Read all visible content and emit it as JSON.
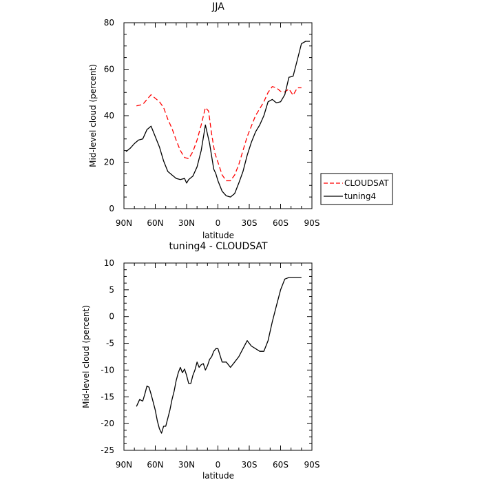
{
  "chart_data": [
    {
      "type": "line",
      "title": "JJA",
      "xlabel": "latitude",
      "ylabel": "Mid-level cloud (percent)",
      "xlim": [
        90,
        -90
      ],
      "ylim": [
        0,
        80
      ],
      "x_ticks": [
        90,
        60,
        30,
        0,
        -30,
        -60,
        -90
      ],
      "x_tick_labels": [
        "90N",
        "60N",
        "30N",
        "0",
        "30S",
        "60S",
        "90S"
      ],
      "y_ticks": [
        0,
        20,
        40,
        60,
        80
      ],
      "y_tick_labels": [
        "0",
        "20",
        "40",
        "60",
        "80"
      ],
      "legend_position": "right",
      "series": [
        {
          "name": "CLOUDSAT",
          "color": "#ff0000",
          "style": "dashed",
          "x": [
            78,
            72,
            68,
            64,
            60,
            56,
            52,
            48,
            44,
            40,
            36,
            32,
            28,
            24,
            20,
            16,
            12,
            9,
            6,
            3,
            0,
            -4,
            -8,
            -12,
            -16,
            -20,
            -24,
            -28,
            -32,
            -36,
            -40,
            -44,
            -48,
            -52,
            -56,
            -60,
            -64,
            -68,
            -72,
            -76,
            -80
          ],
          "y": [
            44.2,
            44.8,
            47.0,
            49.0,
            47.5,
            46.0,
            43.5,
            38.5,
            34.5,
            29.5,
            25.0,
            22.0,
            21.5,
            24.5,
            29.5,
            36.0,
            43.5,
            42.0,
            32.0,
            24.0,
            20.0,
            14.5,
            12.0,
            12.0,
            14.5,
            19.0,
            25.0,
            31.0,
            35.5,
            40.0,
            43.0,
            46.0,
            50.0,
            52.5,
            52.0,
            50.5,
            50.2,
            51.5,
            48.8,
            52.0,
            52.0
          ]
        },
        {
          "name": "tuning4",
          "color": "#000000",
          "style": "solid",
          "x": [
            88,
            84,
            80,
            76,
            72,
            68,
            64,
            60,
            56,
            52,
            48,
            44,
            40,
            36,
            32,
            30,
            28,
            24,
            20,
            16,
            12,
            8,
            4,
            2,
            0,
            -4,
            -8,
            -12,
            -16,
            -20,
            -24,
            -28,
            -32,
            -36,
            -40,
            -44,
            -48,
            -52,
            -56,
            -60,
            -64,
            -68,
            -72,
            -76,
            -80,
            -84,
            -88
          ],
          "y": [
            24.5,
            26.0,
            28.0,
            29.5,
            30.0,
            34.0,
            35.5,
            31.0,
            26.5,
            20.5,
            16.0,
            14.5,
            13.0,
            12.5,
            13.0,
            11.0,
            12.5,
            14.0,
            18.0,
            25.0,
            36.0,
            28.0,
            17.0,
            15.0,
            12.0,
            7.5,
            5.5,
            5.0,
            6.5,
            11.0,
            16.0,
            23.0,
            28.5,
            33.0,
            36.0,
            40.0,
            46.0,
            47.0,
            45.5,
            46.0,
            49.0,
            56.5,
            57.0,
            64.0,
            71.0,
            72.0,
            72.0
          ]
        }
      ]
    },
    {
      "type": "line",
      "title": "tuning4 - CLOUDSAT",
      "xlabel": "latitude",
      "ylabel": "Mid-level cloud (percent)",
      "xlim": [
        90,
        -90
      ],
      "ylim": [
        -25,
        10
      ],
      "x_ticks": [
        90,
        60,
        30,
        0,
        -30,
        -60,
        -90
      ],
      "x_tick_labels": [
        "90N",
        "60N",
        "30N",
        "0",
        "30S",
        "60S",
        "90S"
      ],
      "y_ticks": [
        -25,
        -20,
        -15,
        -10,
        -5,
        0,
        5,
        10
      ],
      "y_tick_labels": [
        "-25",
        "-20",
        "-15",
        "-10",
        "-5",
        "0",
        "5",
        "10"
      ],
      "series": [
        {
          "color": "#000000",
          "style": "solid",
          "x": [
            78,
            75,
            72,
            70,
            68,
            66,
            64,
            62,
            60,
            58,
            56,
            54,
            52,
            50,
            48,
            46,
            44,
            42,
            40,
            38,
            36,
            34,
            32,
            30,
            28,
            26,
            24,
            22,
            20,
            18,
            16,
            14,
            12,
            10,
            8,
            6,
            4,
            2,
            0,
            -4,
            -8,
            -12,
            -16,
            -20,
            -24,
            -28,
            -32,
            -36,
            -40,
            -44,
            -48,
            -52,
            -56,
            -60,
            -64,
            -68,
            -70,
            -72,
            -74,
            -76,
            -78,
            -80
          ],
          "y": [
            -16.8,
            -15.5,
            -15.8,
            -14.5,
            -13.0,
            -13.2,
            -14.5,
            -16.0,
            -17.5,
            -19.5,
            -21.0,
            -21.8,
            -20.5,
            -20.5,
            -19.0,
            -17.5,
            -15.5,
            -14.0,
            -12.0,
            -10.5,
            -9.5,
            -10.5,
            -9.8,
            -11.0,
            -12.5,
            -12.5,
            -11.0,
            -10.0,
            -8.5,
            -9.5,
            -9.0,
            -8.8,
            -10.0,
            -9.2,
            -8.0,
            -7.5,
            -6.5,
            -6.0,
            -6.0,
            -8.5,
            -8.5,
            -9.5,
            -8.5,
            -7.5,
            -6.0,
            -4.5,
            -5.5,
            -6.0,
            -6.5,
            -6.5,
            -4.5,
            -1.0,
            2.0,
            5.0,
            7.0,
            7.3,
            7.3,
            7.3,
            7.3,
            7.3,
            7.3,
            7.3
          ]
        }
      ]
    }
  ]
}
